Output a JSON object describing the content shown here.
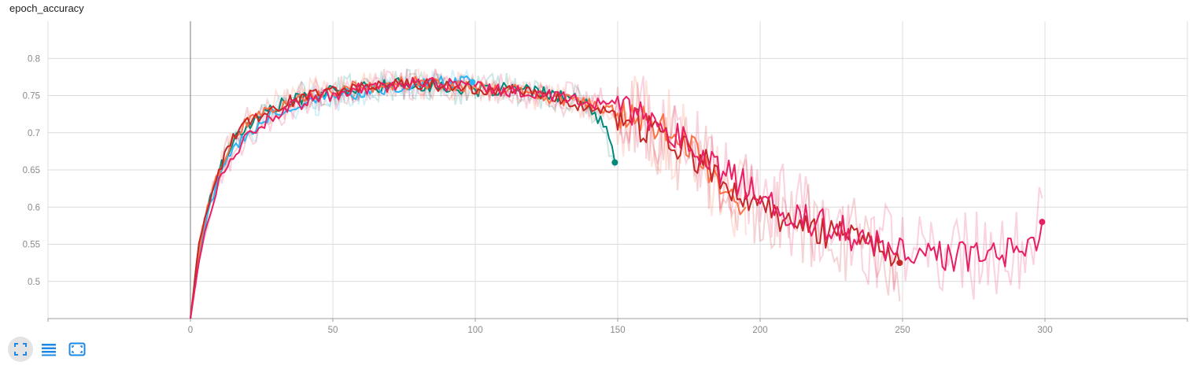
{
  "chart_title": "epoch_accuracy",
  "toolbar": [
    {
      "name": "expand-chart-icon",
      "active": true
    },
    {
      "name": "toggle-log-scale-icon",
      "active": false
    },
    {
      "name": "fit-domain-icon",
      "active": false
    }
  ],
  "colors": {
    "grid": "#dcdcdc",
    "axis": "#9e9e9e",
    "zero_line": "#8f8f8f",
    "active_button_bg": "#e3e3e3",
    "icon": "#1e88e5"
  },
  "chart_data": {
    "type": "line",
    "title": "epoch_accuracy",
    "xlabel": "",
    "ylabel": "",
    "xlim": [
      -50,
      350
    ],
    "ylim": [
      0.45,
      0.85
    ],
    "x_ticks": [
      0,
      50,
      100,
      150,
      200,
      250,
      300
    ],
    "y_ticks": [
      0.5,
      0.55,
      0.6,
      0.65,
      0.7,
      0.75,
      0.8
    ],
    "grid": true,
    "smoothing_shown": true,
    "series": [
      {
        "color": "#00897b",
        "raw_opacity": 0.2,
        "end_marker": true,
        "points": [
          [
            0,
            0.45
          ],
          [
            3,
            0.55
          ],
          [
            6,
            0.6
          ],
          [
            10,
            0.65
          ],
          [
            15,
            0.69
          ],
          [
            20,
            0.71
          ],
          [
            25,
            0.725
          ],
          [
            30,
            0.735
          ],
          [
            40,
            0.748
          ],
          [
            50,
            0.755
          ],
          [
            60,
            0.76
          ],
          [
            70,
            0.765
          ],
          [
            80,
            0.765
          ],
          [
            90,
            0.762
          ],
          [
            100,
            0.755
          ],
          [
            110,
            0.76
          ],
          [
            120,
            0.755
          ],
          [
            130,
            0.75
          ],
          [
            135,
            0.745
          ],
          [
            140,
            0.735
          ],
          [
            143,
            0.72
          ],
          [
            146,
            0.7
          ],
          [
            148,
            0.675
          ],
          [
            149,
            0.66
          ]
        ]
      },
      {
        "color": "#29b6f6",
        "raw_opacity": 0.2,
        "end_marker": true,
        "points": [
          [
            0,
            0.45
          ],
          [
            3,
            0.53
          ],
          [
            6,
            0.59
          ],
          [
            10,
            0.64
          ],
          [
            15,
            0.68
          ],
          [
            20,
            0.7
          ],
          [
            25,
            0.715
          ],
          [
            30,
            0.73
          ],
          [
            40,
            0.74
          ],
          [
            50,
            0.75
          ],
          [
            60,
            0.755
          ],
          [
            70,
            0.76
          ],
          [
            80,
            0.765
          ],
          [
            90,
            0.768
          ],
          [
            95,
            0.77
          ],
          [
            99,
            0.768
          ]
        ]
      },
      {
        "color": "#ff7043",
        "raw_opacity": 0.2,
        "end_marker": false,
        "points": [
          [
            0,
            0.45
          ],
          [
            3,
            0.54
          ],
          [
            6,
            0.6
          ],
          [
            10,
            0.65
          ],
          [
            15,
            0.69
          ],
          [
            20,
            0.715
          ],
          [
            30,
            0.735
          ],
          [
            40,
            0.75
          ],
          [
            50,
            0.757
          ],
          [
            60,
            0.762
          ],
          [
            70,
            0.766
          ],
          [
            80,
            0.767
          ],
          [
            90,
            0.765
          ],
          [
            100,
            0.762
          ],
          [
            110,
            0.758
          ],
          [
            120,
            0.752
          ],
          [
            130,
            0.745
          ],
          [
            140,
            0.738
          ],
          [
            150,
            0.728
          ],
          [
            160,
            0.715
          ],
          [
            170,
            0.695
          ],
          [
            180,
            0.665
          ],
          [
            185,
            0.63
          ],
          [
            190,
            0.61
          ],
          [
            195,
            0.6
          ]
        ]
      },
      {
        "color": "#c62828",
        "raw_opacity": 0.2,
        "end_marker": true,
        "points": [
          [
            0,
            0.45
          ],
          [
            3,
            0.55
          ],
          [
            6,
            0.6
          ],
          [
            10,
            0.65
          ],
          [
            15,
            0.69
          ],
          [
            20,
            0.715
          ],
          [
            30,
            0.735
          ],
          [
            40,
            0.748
          ],
          [
            50,
            0.755
          ],
          [
            60,
            0.762
          ],
          [
            70,
            0.766
          ],
          [
            80,
            0.767
          ],
          [
            90,
            0.764
          ],
          [
            100,
            0.76
          ],
          [
            110,
            0.757
          ],
          [
            120,
            0.752
          ],
          [
            130,
            0.745
          ],
          [
            140,
            0.735
          ],
          [
            150,
            0.72
          ],
          [
            160,
            0.705
          ],
          [
            170,
            0.685
          ],
          [
            180,
            0.66
          ],
          [
            190,
            0.625
          ],
          [
            200,
            0.6
          ],
          [
            210,
            0.585
          ],
          [
            220,
            0.57
          ],
          [
            230,
            0.56
          ],
          [
            240,
            0.545
          ],
          [
            245,
            0.535
          ],
          [
            249,
            0.525
          ]
        ]
      },
      {
        "color": "#e91e63",
        "raw_opacity": 0.2,
        "end_marker": true,
        "points": [
          [
            0,
            0.45
          ],
          [
            3,
            0.53
          ],
          [
            6,
            0.58
          ],
          [
            10,
            0.63
          ],
          [
            15,
            0.67
          ],
          [
            20,
            0.7
          ],
          [
            30,
            0.725
          ],
          [
            40,
            0.742
          ],
          [
            50,
            0.752
          ],
          [
            60,
            0.76
          ],
          [
            70,
            0.764
          ],
          [
            80,
            0.766
          ],
          [
            90,
            0.765
          ],
          [
            100,
            0.762
          ],
          [
            110,
            0.758
          ],
          [
            120,
            0.753
          ],
          [
            130,
            0.748
          ],
          [
            140,
            0.742
          ],
          [
            150,
            0.735
          ],
          [
            160,
            0.72
          ],
          [
            170,
            0.7
          ],
          [
            180,
            0.67
          ],
          [
            190,
            0.64
          ],
          [
            200,
            0.615
          ],
          [
            210,
            0.595
          ],
          [
            220,
            0.58
          ],
          [
            230,
            0.565
          ],
          [
            240,
            0.552
          ],
          [
            250,
            0.54
          ],
          [
            260,
            0.535
          ],
          [
            270,
            0.535
          ],
          [
            280,
            0.535
          ],
          [
            290,
            0.54
          ],
          [
            295,
            0.545
          ],
          [
            299,
            0.58
          ]
        ]
      }
    ]
  }
}
